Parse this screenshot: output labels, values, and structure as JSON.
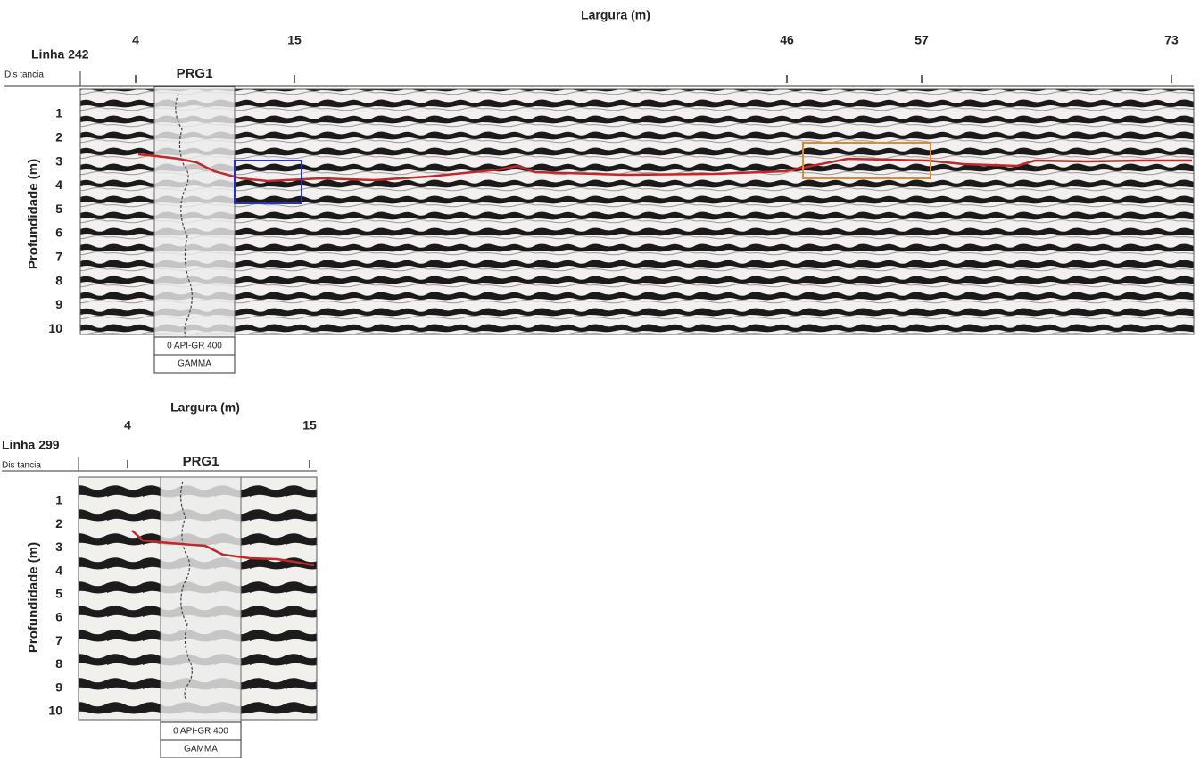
{
  "panels": [
    {
      "title": "Largura (m)",
      "line_label": "Linha 242",
      "distance_label": "Dis tancia",
      "x_labels": [
        "4",
        "15",
        "46",
        "57",
        "73"
      ],
      "well_label": "PRG1",
      "y_labels": [
        "1",
        "2",
        "3",
        "4",
        "5",
        "6",
        "7",
        "8",
        "9",
        "10"
      ],
      "y_axis_label": "Profundidade (m)",
      "log_scale_label": "0 API-GR 400",
      "log_name": "GAMMA"
    },
    {
      "title": "Largura (m)",
      "line_label": "Linha 299",
      "distance_label": "Dis tancia",
      "x_labels": [
        "4",
        "15"
      ],
      "well_label": "PRG1",
      "y_labels": [
        "1",
        "2",
        "3",
        "4",
        "5",
        "6",
        "7",
        "8",
        "9",
        "10"
      ],
      "y_axis_label": "Profundidade (m)",
      "log_scale_label": "0 API-GR 400",
      "log_name": "GAMMA"
    }
  ]
}
